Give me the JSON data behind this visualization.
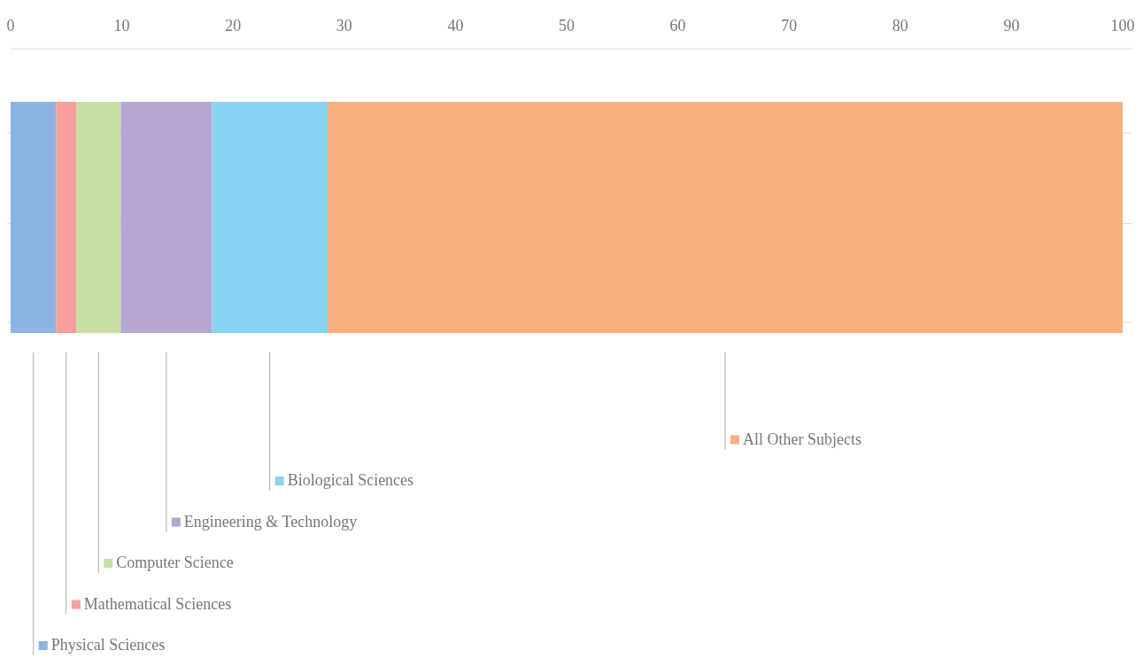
{
  "chart_data": {
    "type": "bar",
    "orientation": "horizontal",
    "stacked": true,
    "categories": [
      null
    ],
    "xlim": [
      0,
      100
    ],
    "xticks": [
      0,
      10,
      20,
      30,
      40,
      50,
      60,
      70,
      80,
      90,
      100
    ],
    "grid": "y",
    "legend": "bottom",
    "series": [
      {
        "name": "Physical Sciences",
        "color": "#8db3e2",
        "values": [
          4.1
        ]
      },
      {
        "name": "Mathematical Sciences",
        "color": "#f79f9a",
        "values": [
          1.8
        ]
      },
      {
        "name": "Computer Science",
        "color": "#c6e0a3",
        "values": [
          4.0
        ]
      },
      {
        "name": "Engineering & Technology",
        "color": "#b6a6d3",
        "values": [
          8.2
        ]
      },
      {
        "name": "Biological Sciences",
        "color": "#89d4f2",
        "values": [
          10.4
        ]
      },
      {
        "name": "All Other Subjects",
        "color": "#f8b07f",
        "values": [
          71.5
        ]
      }
    ]
  }
}
